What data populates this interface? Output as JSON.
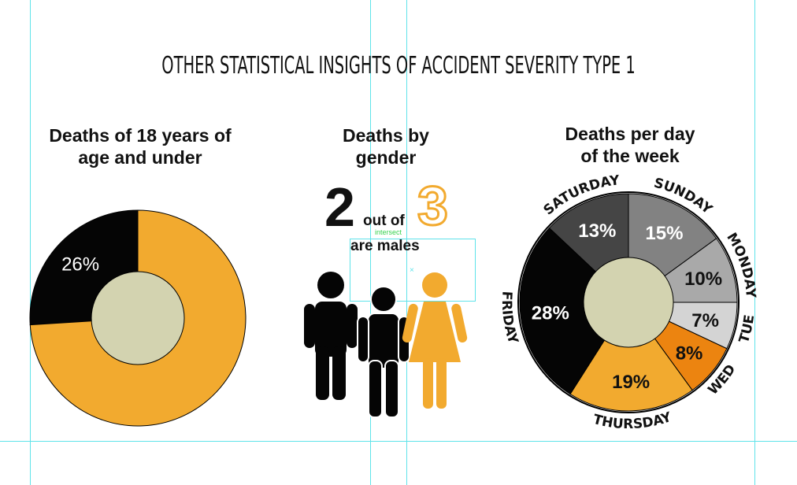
{
  "title": "OTHER STATISTICAL INSIGHTS OF ACCIDENT SEVERITY TYPE 1",
  "colors": {
    "orange": "#F2AA2F",
    "black": "#050505",
    "center": "#D3D3B0",
    "dark_gray": "#454545",
    "gray": "#828282",
    "light_gray": "#A9A9A9",
    "lighter_gray": "#D4D4D4",
    "dark_orange": "#EC8410"
  },
  "age_section": {
    "title_line1": "Deaths of 18 years of",
    "title_line2": "age and under"
  },
  "gender_section": {
    "title_line1": "Deaths by",
    "title_line2": "gender",
    "numerator": "2",
    "out_of": "out of",
    "denominator": "3",
    "caption": "are males",
    "overlay_label": "intersect"
  },
  "week_section": {
    "title_line1": "Deaths per day",
    "title_line2": "of the week"
  },
  "chart_data": [
    {
      "type": "pie",
      "title": "Deaths of 18 years of age and under",
      "slices": [
        {
          "label": "26%",
          "value": 26,
          "color": "#050505"
        },
        {
          "label": "",
          "value": 74,
          "color": "#F2AA2F"
        }
      ]
    },
    {
      "type": "pie",
      "title": "Deaths per day of the week",
      "slices": [
        {
          "day": "SUNDAY",
          "label": "15%",
          "value": 15,
          "color": "#828282"
        },
        {
          "day": "MONDAY",
          "label": "10%",
          "value": 10,
          "color": "#A9A9A9"
        },
        {
          "day": "TUE",
          "label": "7%",
          "value": 7,
          "color": "#D4D4D4"
        },
        {
          "day": "WED",
          "label": "8%",
          "value": 8,
          "color": "#EC8410"
        },
        {
          "day": "THURSDAY",
          "label": "19%",
          "value": 19,
          "color": "#F2AA2F"
        },
        {
          "day": "FRIDAY",
          "label": "28%",
          "value": 28,
          "color": "#050505"
        },
        {
          "day": "SATURDAY",
          "label": "13%",
          "value": 13,
          "color": "#454545"
        }
      ]
    }
  ]
}
